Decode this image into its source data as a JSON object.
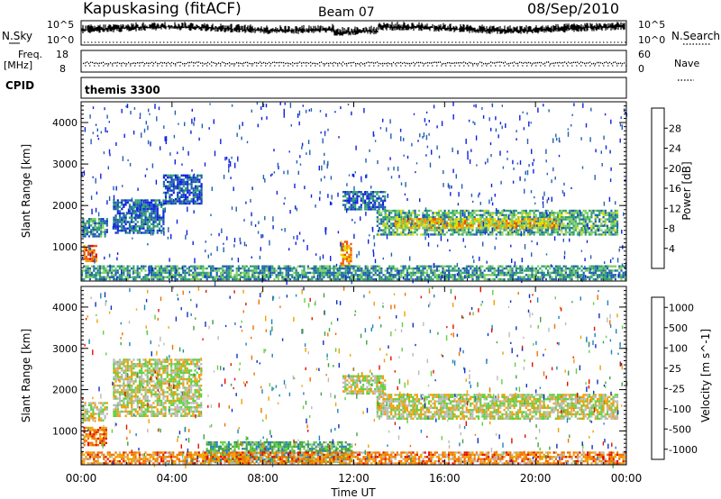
{
  "header": {
    "station": "Kapuskasing (fitACF)",
    "beam": "Beam 07",
    "date": "08/Sep/2010"
  },
  "nsky_panel": {
    "left_label": "N.Sky",
    "right_label": "N.Search",
    "left_ticks": [
      "10^5",
      "10^0"
    ],
    "right_ticks": [
      "10^5",
      "10^0"
    ]
  },
  "freq_panel": {
    "left_label": "Freq.",
    "left_unit": "[MHz]",
    "right_label": "Nave",
    "left_ticks": [
      "18",
      "8"
    ],
    "right_ticks": [
      "60",
      "0"
    ]
  },
  "cpid_panel": {
    "label": "CPID",
    "program": "themis 3300"
  },
  "chart_data": [
    {
      "type": "heatmap",
      "title": "Power",
      "ylabel": "Slant Range [km]",
      "xlabel": "Time UT",
      "ylim": [
        180,
        4500
      ],
      "xlim_hours": [
        0,
        24
      ],
      "yticks": [
        "1000",
        "2000",
        "3000",
        "4000"
      ],
      "xticks": [
        "00:00",
        "04:00",
        "08:00",
        "12:00",
        "16:00",
        "20:00",
        "00:00"
      ],
      "colorbar": {
        "label": "Power [dB]",
        "ticks": [
          "28",
          "24",
          "20",
          "16",
          "12",
          "8",
          "4"
        ],
        "colors": [
          "#e00000",
          "#f05000",
          "#f0a000",
          "#e8e000",
          "#80d060",
          "#30a070",
          "#2060b0",
          "#1020e0"
        ]
      },
      "echo_regions": [
        {
          "t0": 0.05,
          "t1": 1.1,
          "r0": 1250,
          "r1": 1700,
          "level": 0.25
        },
        {
          "t0": 1.4,
          "t1": 3.6,
          "r0": 1350,
          "r1": 2150,
          "level": 0.2
        },
        {
          "t0": 3.6,
          "t1": 5.3,
          "r0": 2050,
          "r1": 2750,
          "level": 0.15
        },
        {
          "t0": 0.1,
          "t1": 0.7,
          "r0": 650,
          "r1": 1050,
          "level": 0.8
        },
        {
          "t0": 11.4,
          "t1": 11.9,
          "r0": 550,
          "r1": 1150,
          "level": 0.7
        },
        {
          "t0": 11.5,
          "t1": 13.4,
          "r0": 1900,
          "r1": 2350,
          "level": 0.2
        },
        {
          "t0": 13.0,
          "t1": 23.6,
          "r0": 1300,
          "r1": 1900,
          "level": 0.35
        },
        {
          "t0": 13.8,
          "t1": 21.0,
          "r0": 1450,
          "r1": 1700,
          "level": 0.6
        },
        {
          "t0": 0.0,
          "t1": 24.0,
          "r0": 200,
          "r1": 560,
          "level": 0.3
        }
      ]
    },
    {
      "type": "heatmap",
      "title": "Velocity",
      "ylabel": "Slant Range [km]",
      "xlabel": "Time UT",
      "ylim": [
        180,
        4500
      ],
      "xlim_hours": [
        0,
        24
      ],
      "yticks": [
        "1000",
        "2000",
        "3000",
        "4000"
      ],
      "xticks": [
        "00:00",
        "04:00",
        "08:00",
        "12:00",
        "16:00",
        "20:00",
        "00:00"
      ],
      "colorbar": {
        "label": "Velocity [m s^-1]",
        "ticks": [
          "1000",
          "500",
          "100",
          "25",
          "-25",
          "-100",
          "-500",
          "-1000"
        ],
        "colors": [
          "#1030c0",
          "#2080c0",
          "#40a040",
          "#60d040",
          "#bbbbbb",
          "#f0a000",
          "#f07000",
          "#e01000"
        ]
      },
      "echo_regions": [
        {
          "t0": 0.05,
          "t1": 1.1,
          "r0": 1250,
          "r1": 1700,
          "level": 0.55
        },
        {
          "t0": 1.4,
          "t1": 5.3,
          "r0": 1350,
          "r1": 2750,
          "level": 0.55
        },
        {
          "t0": 0.1,
          "t1": 1.1,
          "r0": 650,
          "r1": 1100,
          "level": 0.8
        },
        {
          "t0": 11.5,
          "t1": 13.4,
          "r0": 1900,
          "r1": 2350,
          "level": 0.55
        },
        {
          "t0": 13.0,
          "t1": 23.6,
          "r0": 1300,
          "r1": 1900,
          "level": 0.55
        },
        {
          "t0": 5.5,
          "t1": 11.9,
          "r0": 250,
          "r1": 750,
          "level": 0.35
        },
        {
          "t0": 0.0,
          "t1": 24.0,
          "r0": 200,
          "r1": 500,
          "level": 0.75
        }
      ]
    }
  ]
}
